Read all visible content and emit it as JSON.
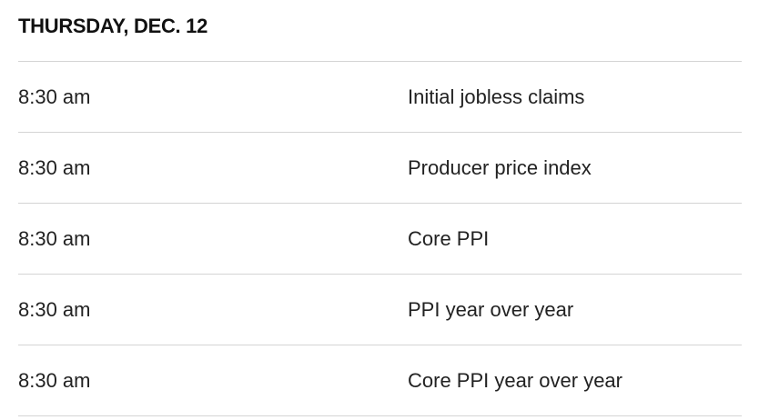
{
  "header": {
    "title": "THURSDAY, DEC. 12"
  },
  "table": {
    "rows": [
      [
        "8:30 am",
        "Initial jobless claims"
      ],
      [
        "8:30 am",
        "Producer price index"
      ],
      [
        "8:30 am",
        "Core PPI"
      ],
      [
        "8:30 am",
        "PPI year over year"
      ],
      [
        "8:30 am",
        "Core PPI year over year"
      ]
    ]
  }
}
